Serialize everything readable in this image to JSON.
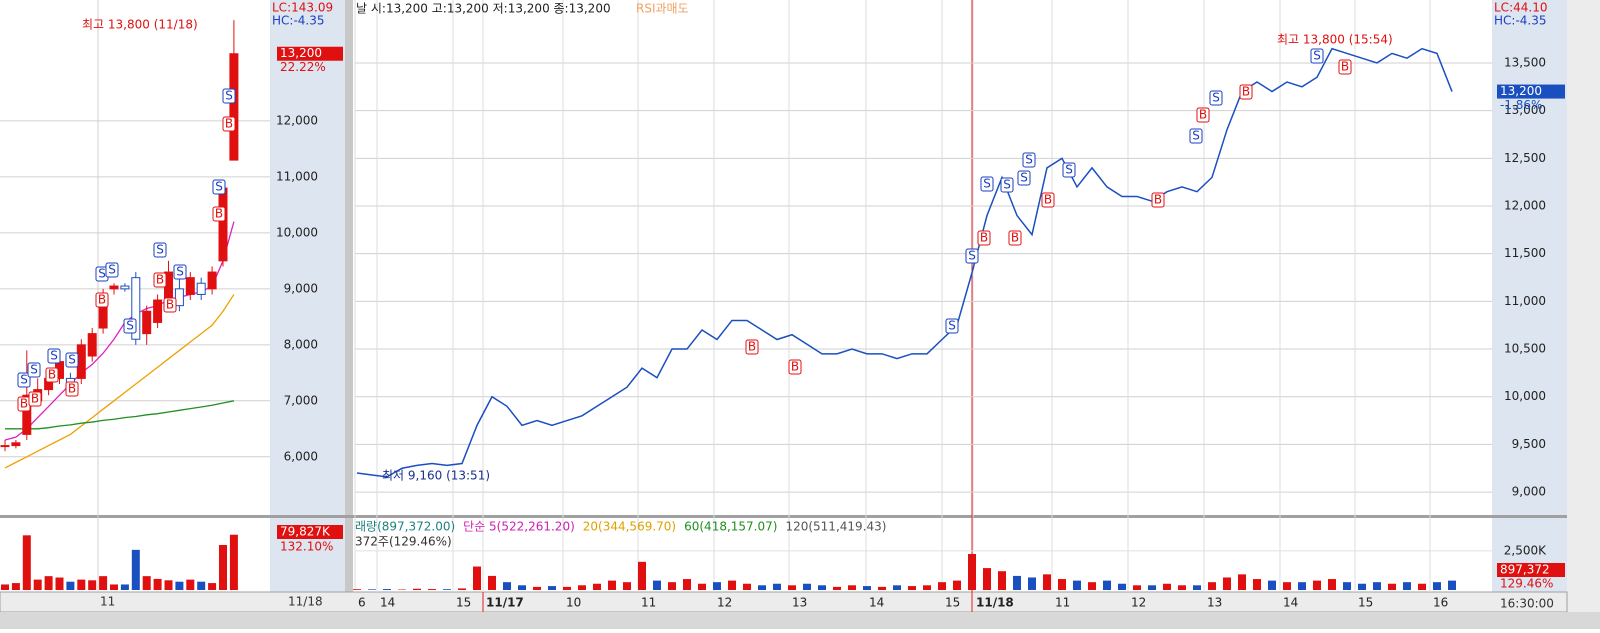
{
  "left_chart": {
    "type": "candlestick",
    "annotation": "최고 13,800 (11/18)",
    "lc": "LC:143.09",
    "hc": "HC:-4.35",
    "price_tag": "13,200",
    "change_tag": "22.22%",
    "ylim": [
      4960,
      14160
    ],
    "yticks": [
      {
        "value": 6000,
        "label": "6,000"
      },
      {
        "value": 7000,
        "label": "7,000"
      },
      {
        "value": 8000,
        "label": "8,000"
      },
      {
        "value": 9000,
        "label": "9,000"
      },
      {
        "value": 10000,
        "label": "10,000"
      },
      {
        "value": 11000,
        "label": "11,000"
      },
      {
        "value": 12000,
        "label": "12,000"
      }
    ],
    "x_label": "11",
    "date_label": "11/18",
    "open": [
      6200,
      6200,
      6400,
      7000,
      7200,
      7400,
      7400,
      7400,
      7800,
      8300,
      9000,
      9050,
      9200,
      8200,
      8400,
      8800,
      9000,
      8900,
      9100,
      9000,
      9500,
      11300
    ],
    "high": [
      6300,
      6300,
      7900,
      7400,
      7500,
      7900,
      7500,
      8100,
      8300,
      9000,
      9100,
      9100,
      9300,
      8700,
      8900,
      9500,
      9300,
      9300,
      9200,
      9400,
      10900,
      13800
    ],
    "low": [
      6100,
      6150,
      6300,
      6900,
      7100,
      7300,
      7200,
      7300,
      7700,
      8200,
      8900,
      8950,
      8000,
      8000,
      8300,
      8700,
      8600,
      8800,
      8800,
      8900,
      9400,
      11300
    ],
    "close": [
      6200,
      6250,
      7100,
      7200,
      7400,
      7700,
      7300,
      8000,
      8200,
      8900,
      9050,
      9000,
      8100,
      8600,
      8800,
      9300,
      8700,
      9200,
      8900,
      9300,
      10800,
      13200
    ],
    "ma": [
      {
        "color": "#e020c0",
        "values": [
          6300,
          6350,
          6500,
          6700,
          6900,
          7100,
          7300,
          7500,
          7650,
          7850,
          8100,
          8400,
          8550,
          8650,
          8700,
          8800,
          8850,
          8900,
          8950,
          9050,
          9500,
          10200
        ]
      },
      {
        "color": "#f0a000",
        "values": [
          5800,
          5900,
          6000,
          6100,
          6200,
          6300,
          6400,
          6550,
          6700,
          6850,
          7000,
          7150,
          7300,
          7450,
          7600,
          7750,
          7900,
          8050,
          8200,
          8350,
          8600,
          8900
        ]
      },
      {
        "color": "#209020",
        "values": [
          6500,
          6500,
          6500,
          6500,
          6520,
          6550,
          6570,
          6600,
          6620,
          6650,
          6670,
          6700,
          6720,
          6750,
          6770,
          6800,
          6830,
          6860,
          6890,
          6920,
          6960,
          7000
        ]
      }
    ],
    "volume": {
      "ylim": [
        0,
        104000
      ],
      "values": [
        8000,
        10000,
        79000,
        15000,
        20000,
        18000,
        12000,
        15000,
        14000,
        20000,
        8000,
        8000,
        58000,
        20000,
        16000,
        14000,
        12000,
        15000,
        12000,
        10000,
        65000,
        79827
      ],
      "tag": "79,827K",
      "tag2": "132.10%"
    }
  },
  "right_chart": {
    "type": "line",
    "header": "날 시:13,200 고:13,200 저:13,200 종:13,200",
    "rsi": "RSI과매도",
    "high_note": "최고 13,800 (15:54)",
    "low_note": "최저 9,160 (13:51)",
    "lc": "LC:44.10",
    "hc": "HC:-4.35",
    "price_tag": "13,200",
    "change_tag": "-1.86%",
    "time": "16:30:00",
    "ylim": [
      8760,
      14160
    ],
    "yticks": [
      {
        "value": 9000,
        "label": "9,000"
      },
      {
        "value": 9500,
        "label": "9,500"
      },
      {
        "value": 10000,
        "label": "10,000"
      },
      {
        "value": 10500,
        "label": "10,500"
      },
      {
        "value": 11000,
        "label": "11,000"
      },
      {
        "value": 11500,
        "label": "11,500"
      },
      {
        "value": 12000,
        "label": "12,000"
      },
      {
        "value": 12500,
        "label": "12,500"
      },
      {
        "value": 13000,
        "label": "13,000"
      },
      {
        "value": 13500,
        "label": "13,500"
      }
    ],
    "x_labels": [
      "6",
      "14",
      "15",
      "11/17",
      "10",
      "11",
      "12",
      "13",
      "14",
      "15",
      "11/18",
      "11",
      "12",
      "13",
      "14",
      "15",
      "16"
    ],
    "color": "#1a4fc0",
    "values": [
      9200,
      9180,
      9160,
      9250,
      9280,
      9300,
      9280,
      9300,
      9700,
      10000,
      9900,
      9700,
      9750,
      9700,
      9750,
      9800,
      9900,
      10000,
      10100,
      10300,
      10200,
      10500,
      10500,
      10700,
      10600,
      10800,
      10800,
      10700,
      10600,
      10650,
      10550,
      10450,
      10450,
      10500,
      10450,
      10450,
      10400,
      10450,
      10450,
      10600,
      10750,
      11300,
      11900,
      12300,
      11900,
      11700,
      12400,
      12500,
      12200,
      12400,
      12200,
      12100,
      12100,
      12050,
      12150,
      12200,
      12150,
      12300,
      12800,
      13200,
      13300,
      13200,
      13300,
      13250,
      13350,
      13650,
      13600,
      13550,
      13500,
      13600,
      13550,
      13650,
      13600,
      13200
    ],
    "volume": {
      "ylim": [
        0,
        4600
      ],
      "yticks": [
        {
          "value": 2500,
          "label": "2,500K"
        }
      ],
      "tag": "897,372",
      "tag2": "129.46%",
      "legend": [
        "래량(897,372.00)",
        "단순 5(522,261.20)",
        "20(344,569.70)",
        "60(418,157.07)",
        "120(511,419.43)"
      ],
      "legend2": "372주(129.46%)",
      "values": [
        50,
        40,
        60,
        30,
        80,
        60,
        50,
        100,
        1500,
        900,
        500,
        300,
        200,
        250,
        200,
        300,
        400,
        600,
        500,
        1800,
        600,
        500,
        700,
        400,
        500,
        600,
        400,
        300,
        400,
        300,
        400,
        300,
        200,
        300,
        250,
        200,
        300,
        250,
        300,
        500,
        600,
        2300,
        1400,
        1200,
        900,
        800,
        1000,
        700,
        600,
        500,
        600,
        400,
        300,
        300,
        400,
        300,
        300,
        500,
        800,
        1000,
        700,
        600,
        500,
        500,
        600,
        700,
        500,
        400,
        500,
        400,
        500,
        400,
        500,
        600
      ]
    }
  },
  "signals": {
    "buy": "B",
    "sell": "S"
  }
}
